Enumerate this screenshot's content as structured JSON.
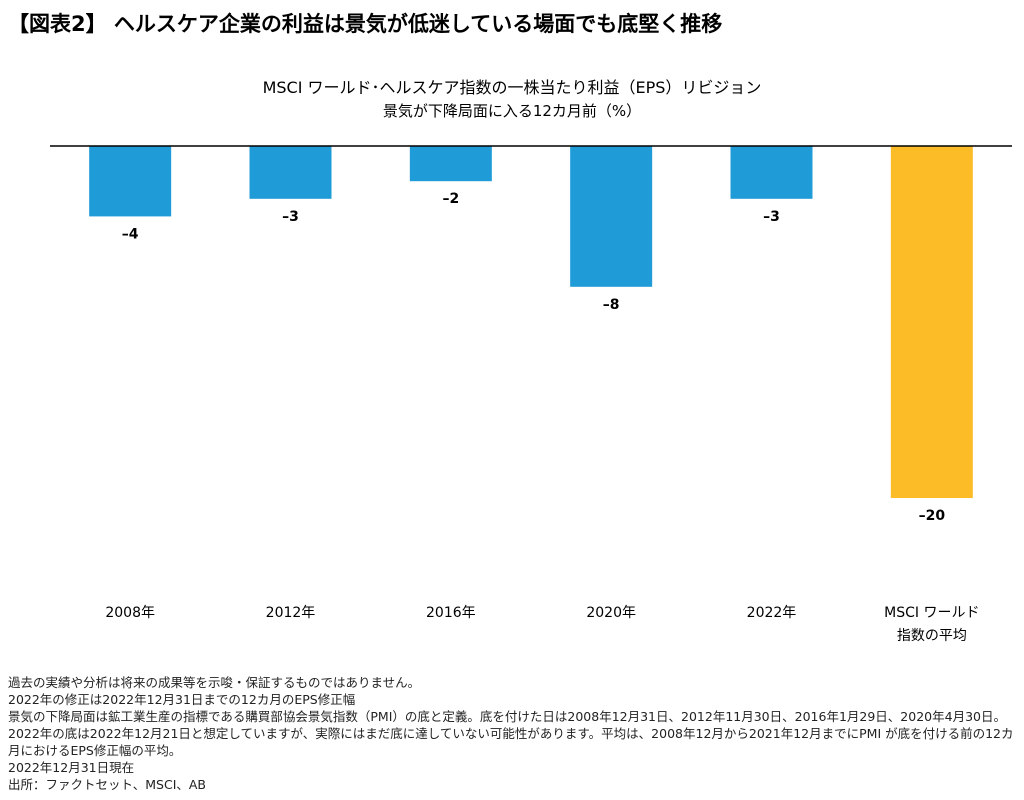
{
  "figure_title": "【図表2】 ヘルスケア企業の利益は景気が低迷している場面でも底堅く推移",
  "colors": {
    "bar": "#1f9bd7",
    "average_bar": "#fbbc27",
    "axis": "#000000"
  },
  "chart_data": {
    "type": "bar",
    "title": "MSCI ワールド･ヘルスケア指数の一株当たり利益（EPS）リビジョン",
    "subtitle": "景気が下降局面に入る12カ月前（%）",
    "categories": [
      "2008年",
      "2012年",
      "2016年",
      "2020年",
      "2022年",
      "MSCI ワールド\n指数の平均"
    ],
    "values": [
      -4,
      -3,
      -2,
      -8,
      -3,
      -20
    ],
    "data_labels": [
      "–4",
      "–3",
      "–2",
      "–8",
      "–3",
      "–20"
    ],
    "ylim": [
      -20,
      0
    ],
    "grid": false,
    "xlabel": "",
    "ylabel": ""
  },
  "notes": [
    "過去の実績や分析は将来の成果等を示唆・保証するものではありません。",
    "2022年の修正は2022年12月31日までの12カ月のEPS修正幅",
    "景気の下降局面は鉱工業生産の指標である購買部協会景気指数（PMI）の底と定義。底を付けた日は2008年12月31日、2012年11月30日、2016年1月29日、2020年4月30日。2022年の底は2022年12月21日と想定していますが、実際にはまだ底に達していない可能性があります。平均は、2008年12月から2021年12月までにPMI が底を付ける前の12カ月におけるEPS修正幅の平均。",
    "2022年12月31日現在",
    "出所：ファクトセット、MSCI、AB"
  ]
}
